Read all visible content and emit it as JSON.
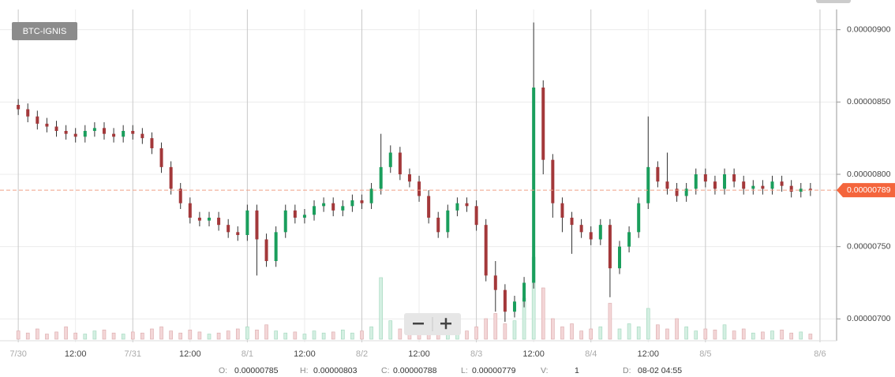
{
  "chart_data": {
    "type": "candlestick",
    "symbol": "BTC-IGNIS",
    "x": [
      0,
      2,
      4,
      6,
      8,
      10,
      12,
      14,
      16,
      18,
      20,
      22,
      24,
      26,
      28,
      30,
      32,
      34,
      36,
      38,
      40,
      42,
      44,
      46,
      48,
      50,
      52,
      54,
      56,
      58,
      60,
      62,
      64,
      66,
      68,
      70,
      72,
      74,
      76,
      78,
      80,
      82,
      84,
      86,
      88,
      90,
      92,
      94,
      96,
      98,
      100,
      102,
      104,
      106,
      108,
      110,
      112,
      114,
      116,
      118,
      120,
      122,
      124,
      126,
      128,
      130,
      132,
      134,
      136,
      138,
      140,
      142,
      144,
      146,
      148,
      150,
      152,
      154,
      156,
      158,
      160,
      162,
      164,
      166
    ],
    "open": [
      8.48e-06,
      8.45e-06,
      8.4e-06,
      8.35e-06,
      8.33e-06,
      8.3e-06,
      8.28e-06,
      8.26e-06,
      8.3e-06,
      8.32e-06,
      8.28e-06,
      8.26e-06,
      8.3e-06,
      8.28e-06,
      8.25e-06,
      8.18e-06,
      8.05e-06,
      7.9e-06,
      7.8e-06,
      7.7e-06,
      7.68e-06,
      7.7e-06,
      7.65e-06,
      7.6e-06,
      7.58e-06,
      7.75e-06,
      7.55e-06,
      7.4e-06,
      7.6e-06,
      7.75e-06,
      7.7e-06,
      7.72e-06,
      7.78e-06,
      7.8e-06,
      7.75e-06,
      7.78e-06,
      7.82e-06,
      7.8e-06,
      7.9e-06,
      8.05e-06,
      8.15e-06,
      8e-06,
      7.95e-06,
      7.85e-06,
      7.7e-06,
      7.6e-06,
      7.75e-06,
      7.8e-06,
      7.78e-06,
      7.65e-06,
      7.3e-06,
      7.2e-06,
      7.05e-06,
      7.12e-06,
      7.25e-06,
      8.6e-06,
      8.1e-06,
      7.8e-06,
      7.7e-06,
      7.65e-06,
      7.6e-06,
      7.55e-06,
      7.65e-06,
      7.35e-06,
      7.5e-06,
      7.6e-06,
      7.8e-06,
      8.05e-06,
      7.95e-06,
      7.9e-06,
      7.85e-06,
      7.9e-06,
      8e-06,
      7.95e-06,
      7.9e-06,
      8e-06,
      7.95e-06,
      7.9e-06,
      7.92e-06,
      7.9e-06,
      7.95e-06,
      7.92e-06,
      7.88e-06,
      7.9e-06
    ],
    "high": [
      8.52e-06,
      8.49e-06,
      8.44e-06,
      8.39e-06,
      8.37e-06,
      8.34e-06,
      8.32e-06,
      8.34e-06,
      8.36e-06,
      8.36e-06,
      8.32e-06,
      8.34e-06,
      8.34e-06,
      8.32e-06,
      8.29e-06,
      8.22e-06,
      8.09e-06,
      7.94e-06,
      7.84e-06,
      7.74e-06,
      7.74e-06,
      7.74e-06,
      7.69e-06,
      7.64e-06,
      7.79e-06,
      7.79e-06,
      7.59e-06,
      7.64e-06,
      7.79e-06,
      7.79e-06,
      7.76e-06,
      7.82e-06,
      7.84e-06,
      7.84e-06,
      7.82e-06,
      7.86e-06,
      7.86e-06,
      7.94e-06,
      8.28e-06,
      8.2e-06,
      8.19e-06,
      8.04e-06,
      7.99e-06,
      7.89e-06,
      7.74e-06,
      7.79e-06,
      7.84e-06,
      7.84e-06,
      7.82e-06,
      7.69e-06,
      7.4e-06,
      7.24e-06,
      7.16e-06,
      7.29e-06,
      9.05e-06,
      8.65e-06,
      8.14e-06,
      7.84e-06,
      7.74e-06,
      7.69e-06,
      7.64e-06,
      7.69e-06,
      7.69e-06,
      7.54e-06,
      7.64e-06,
      7.84e-06,
      8.4e-06,
      8.09e-06,
      8.15e-06,
      7.94e-06,
      7.94e-06,
      8.04e-06,
      8.04e-06,
      7.99e-06,
      8.04e-06,
      8.04e-06,
      7.99e-06,
      7.96e-06,
      7.96e-06,
      7.99e-06,
      7.99e-06,
      7.96e-06,
      7.94e-06,
      7.94e-06
    ],
    "low": [
      8.41e-06,
      8.36e-06,
      8.31e-06,
      8.29e-06,
      8.26e-06,
      8.24e-06,
      8.22e-06,
      8.22e-06,
      8.26e-06,
      8.24e-06,
      8.22e-06,
      8.22e-06,
      8.24e-06,
      8.21e-06,
      8.14e-06,
      8.01e-06,
      7.86e-06,
      7.76e-06,
      7.66e-06,
      7.64e-06,
      7.64e-06,
      7.61e-06,
      7.56e-06,
      7.54e-06,
      7.54e-06,
      7.3e-06,
      7.36e-06,
      7.36e-06,
      7.56e-06,
      7.66e-06,
      7.66e-06,
      7.68e-06,
      7.74e-06,
      7.71e-06,
      7.71e-06,
      7.74e-06,
      7.76e-06,
      7.76e-06,
      7.86e-06,
      8.01e-06,
      7.96e-06,
      7.91e-06,
      7.81e-06,
      7.66e-06,
      7.56e-06,
      7.56e-06,
      7.71e-06,
      7.74e-06,
      7.61e-06,
      7.26e-06,
      7.05e-06,
      6.98e-06,
      7.01e-06,
      7.08e-06,
      7.21e-06,
      8e-06,
      7.7e-06,
      7.6e-06,
      7.45e-06,
      7.56e-06,
      7.51e-06,
      7.51e-06,
      7.15e-06,
      7.31e-06,
      7.46e-06,
      7.56e-06,
      7.76e-06,
      7.91e-06,
      7.86e-06,
      7.81e-06,
      7.81e-06,
      7.86e-06,
      7.91e-06,
      7.86e-06,
      7.86e-06,
      7.91e-06,
      7.86e-06,
      7.86e-06,
      7.86e-06,
      7.86e-06,
      7.88e-06,
      7.84e-06,
      7.84e-06,
      7.85e-06
    ],
    "close": [
      8.45e-06,
      8.4e-06,
      8.35e-06,
      8.33e-06,
      8.3e-06,
      8.28e-06,
      8.26e-06,
      8.3e-06,
      8.32e-06,
      8.28e-06,
      8.26e-06,
      8.3e-06,
      8.28e-06,
      8.25e-06,
      8.18e-06,
      8.05e-06,
      7.9e-06,
      7.8e-06,
      7.7e-06,
      7.68e-06,
      7.7e-06,
      7.65e-06,
      7.6e-06,
      7.58e-06,
      7.75e-06,
      7.55e-06,
      7.4e-06,
      7.6e-06,
      7.75e-06,
      7.7e-06,
      7.72e-06,
      7.78e-06,
      7.8e-06,
      7.75e-06,
      7.78e-06,
      7.82e-06,
      7.8e-06,
      7.9e-06,
      8.05e-06,
      8.15e-06,
      8e-06,
      7.95e-06,
      7.85e-06,
      7.7e-06,
      7.6e-06,
      7.75e-06,
      7.8e-06,
      7.78e-06,
      7.65e-06,
      7.3e-06,
      7.2e-06,
      7.05e-06,
      7.12e-06,
      7.25e-06,
      8.6e-06,
      8.1e-06,
      7.8e-06,
      7.7e-06,
      7.65e-06,
      7.6e-06,
      7.55e-06,
      7.65e-06,
      7.35e-06,
      7.5e-06,
      7.6e-06,
      7.8e-06,
      8.05e-06,
      7.95e-06,
      7.9e-06,
      7.85e-06,
      7.9e-06,
      8e-06,
      7.95e-06,
      7.9e-06,
      8e-06,
      7.95e-06,
      7.9e-06,
      7.92e-06,
      7.9e-06,
      7.95e-06,
      7.92e-06,
      7.88e-06,
      7.9e-06,
      7.89e-06
    ],
    "volume": [
      8,
      6,
      10,
      5,
      7,
      12,
      6,
      5,
      8,
      9,
      6,
      5,
      7,
      6,
      10,
      12,
      8,
      6,
      9,
      7,
      5,
      6,
      8,
      10,
      12,
      9,
      14,
      8,
      6,
      7,
      5,
      8,
      6,
      7,
      9,
      6,
      8,
      12,
      60,
      18,
      10,
      8,
      6,
      9,
      7,
      10,
      6,
      8,
      12,
      20,
      25,
      15,
      18,
      40,
      80,
      50,
      20,
      12,
      15,
      8,
      10,
      12,
      35,
      10,
      15,
      12,
      30,
      14,
      10,
      20,
      12,
      8,
      10,
      9,
      14,
      8,
      10,
      6,
      7,
      8,
      9,
      6,
      7,
      5
    ],
    "up_color": "#1a9e5c",
    "down_color": "#a3383a",
    "xlim": [
      -3,
      169
    ],
    "xticks": [
      {
        "value": 0,
        "label": "7/30"
      },
      {
        "value": 12,
        "label": "12:00"
      },
      {
        "value": 24,
        "label": "7/31"
      },
      {
        "value": 36,
        "label": "12:00"
      },
      {
        "value": 48,
        "label": "8/1"
      },
      {
        "value": 60,
        "label": "12:00"
      },
      {
        "value": 72,
        "label": "8/2"
      },
      {
        "value": 84,
        "label": "12:00"
      },
      {
        "value": 96,
        "label": "8/3"
      },
      {
        "value": 108,
        "label": "12:00"
      },
      {
        "value": 120,
        "label": "8/4"
      },
      {
        "value": 132,
        "label": "12:00"
      },
      {
        "value": 144,
        "label": "8/5"
      },
      {
        "value": 168,
        "label": "8/6"
      }
    ],
    "ylim": [
      6.86e-06,
      9.14e-06
    ],
    "yticks": [
      {
        "value": 7e-06,
        "label": "0.00000700"
      },
      {
        "value": 7.5e-06,
        "label": "0.00000750"
      },
      {
        "value": 8e-06,
        "label": "0.00000800"
      },
      {
        "value": 8.5e-06,
        "label": "0.00000850"
      },
      {
        "value": 9e-06,
        "label": "0.00000900"
      }
    ],
    "grid": true,
    "price_line": {
      "value": 7.89e-06,
      "label": "0.00000789"
    }
  },
  "info_bar": [
    {
      "label": "O:",
      "value": "0.00000785"
    },
    {
      "label": "H:",
      "value": "0.00000803"
    },
    {
      "label": "C:",
      "value": "0.00000788"
    },
    {
      "label": "L:",
      "value": "0.00000779"
    },
    {
      "label": "V:",
      "value": "1"
    },
    {
      "label": "D:",
      "value": "08-02 04:55"
    }
  ]
}
